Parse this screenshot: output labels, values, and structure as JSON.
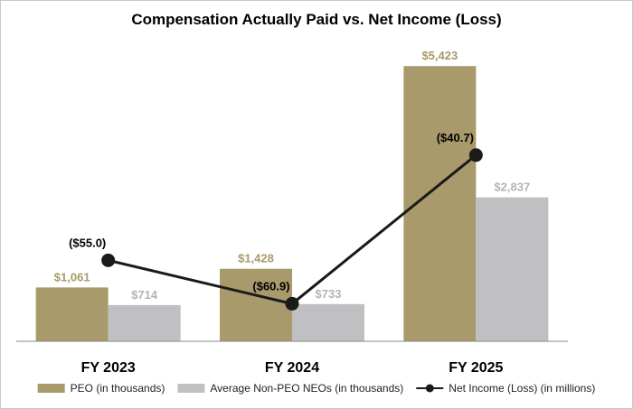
{
  "chart_data": {
    "type": "bar",
    "title": "Compensation Actually Paid vs. Net Income (Loss)",
    "categories": [
      "FY 2023",
      "FY 2024",
      "FY 2025"
    ],
    "series": [
      {
        "name": "PEO (in thousands)",
        "kind": "bar",
        "color": "#a89a6a",
        "label_color": "#a89a6a",
        "values": [
          1061,
          1428,
          5423
        ],
        "labels": [
          "$1,061",
          "$1,428",
          "$5,423"
        ]
      },
      {
        "name": "Average Non-PEO NEOs (in thousands)",
        "kind": "bar",
        "color": "#c0c0c2",
        "label_color": "#b4b4b6",
        "values": [
          714,
          733,
          2837
        ],
        "labels": [
          "$714",
          "$733",
          "$2,837"
        ]
      },
      {
        "name": "Net Income (Loss) (in millions)",
        "kind": "line",
        "color": "#1a1a1a",
        "label_color": "#000000",
        "values": [
          -55.0,
          -60.9,
          -40.7
        ],
        "labels": [
          "($55.0)",
          "($60.9)",
          "($40.7)"
        ]
      }
    ],
    "bar_ylim": [
      0,
      5800
    ],
    "line_ylim": [
      -66,
      -26
    ],
    "grid": false,
    "legend": "bottom"
  }
}
